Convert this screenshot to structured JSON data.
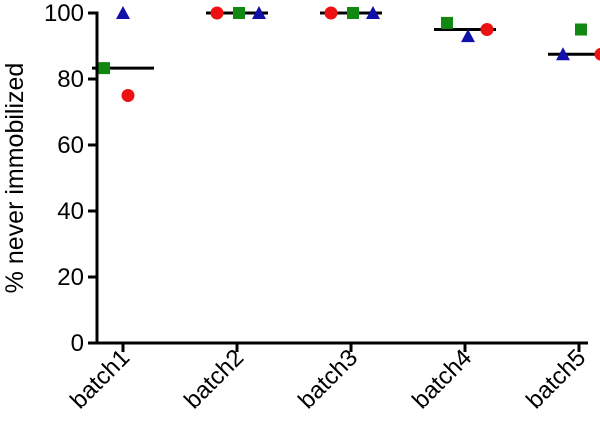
{
  "chart_data": {
    "type": "scatter",
    "categories": [
      "batch1",
      "batch2",
      "batch3",
      "batch4",
      "batch5"
    ],
    "ylabel": "% never immobilized",
    "ylim": [
      0,
      100
    ],
    "yticks": [
      0,
      20,
      40,
      60,
      80,
      100
    ],
    "grid": false,
    "series": [
      {
        "marker": "circle",
        "color": "#ee1111",
        "values": [
          75,
          100,
          100,
          95,
          87.5
        ]
      },
      {
        "marker": "square",
        "color": "#118811",
        "values": [
          83.3,
          100,
          100,
          97,
          95
        ]
      },
      {
        "marker": "triangle",
        "color": "#1111aa",
        "values": [
          100,
          100,
          100,
          93,
          87.5
        ]
      }
    ],
    "means": [
      83.3,
      100,
      100,
      95,
      87.5
    ]
  }
}
